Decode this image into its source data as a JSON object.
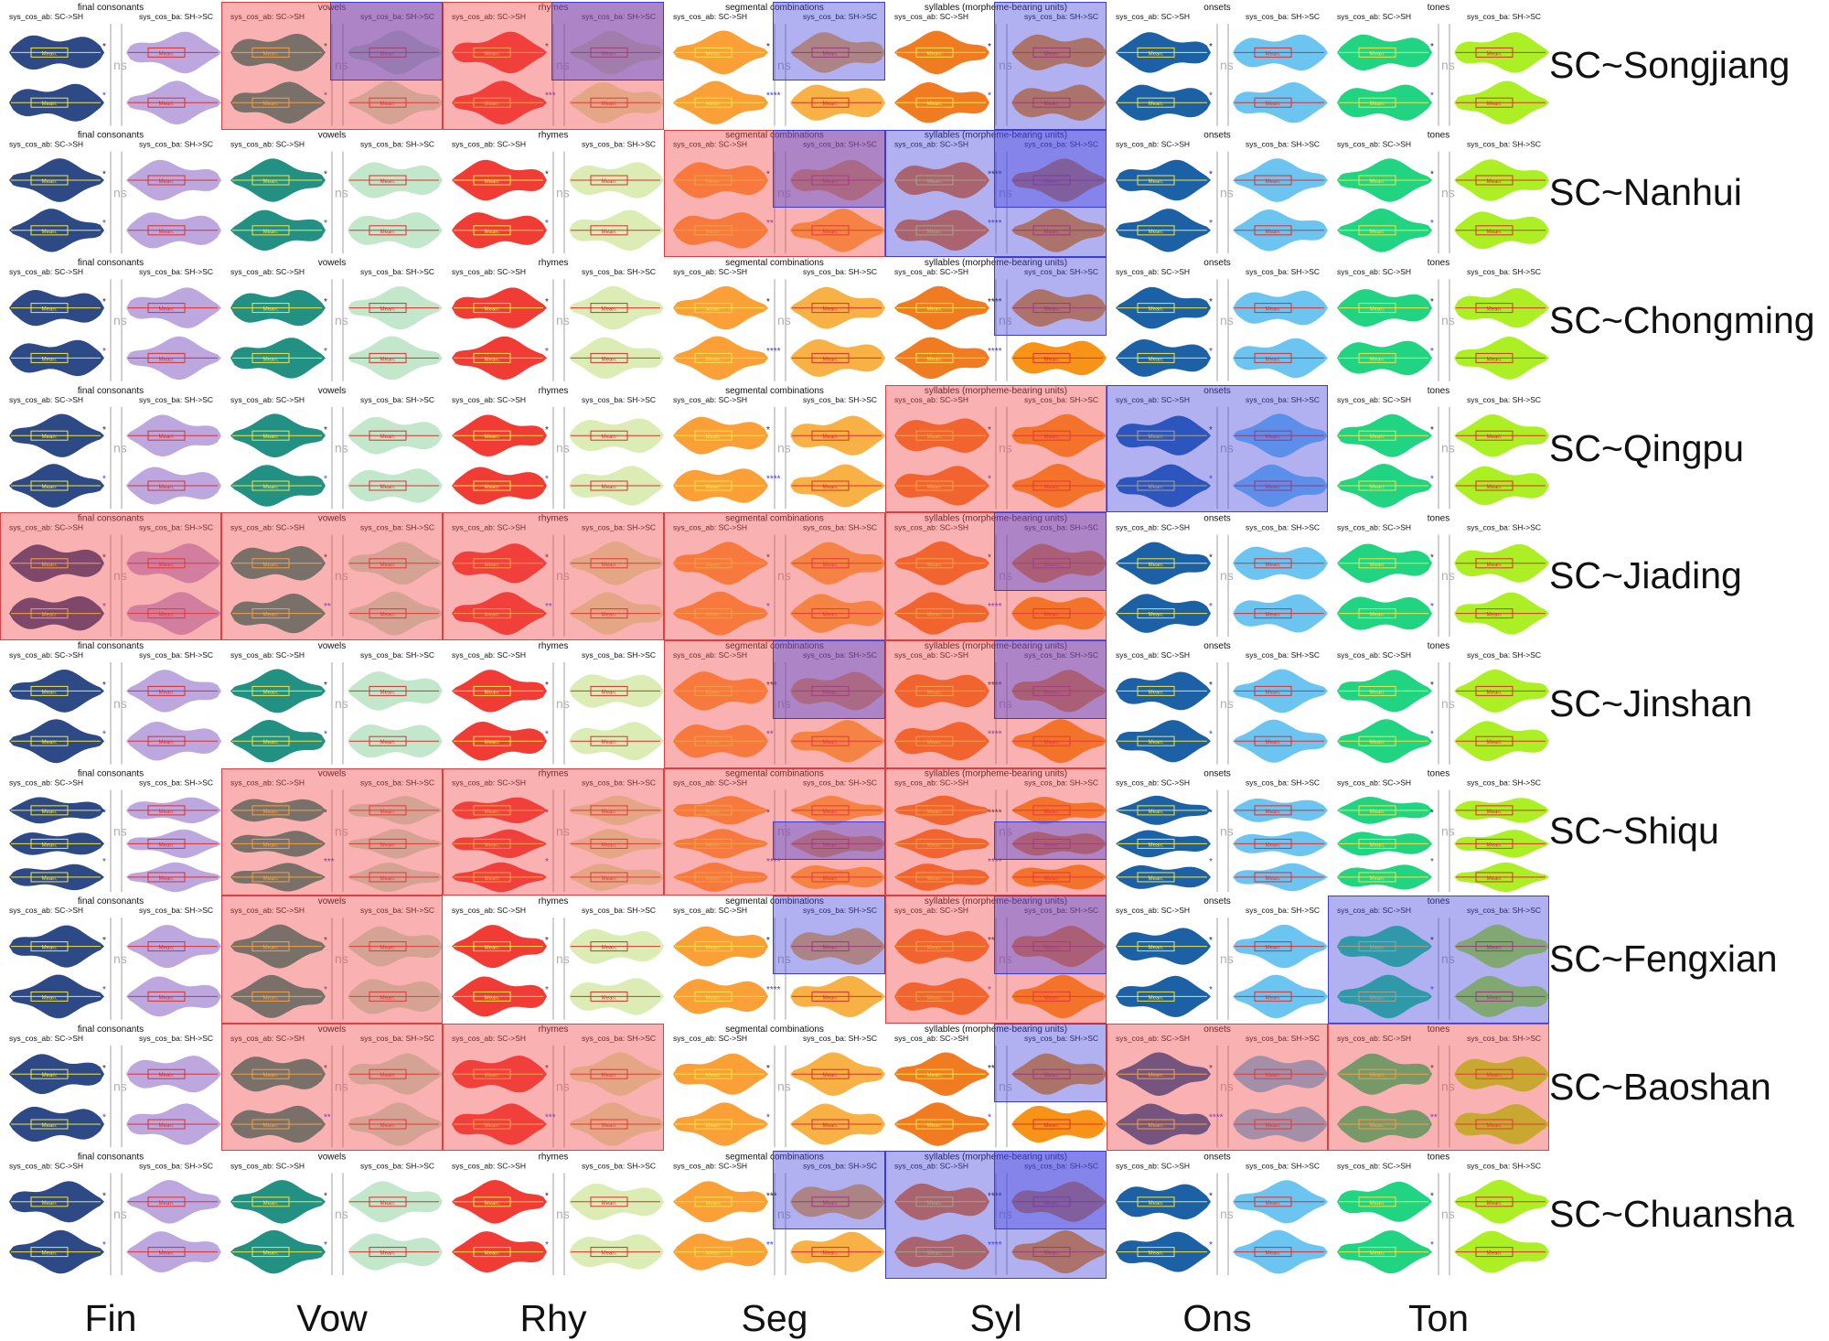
{
  "columns": [
    {
      "code": "Fin",
      "title": "final consonants",
      "left_color": "#23407f",
      "right_color": "#b8a2dd"
    },
    {
      "code": "Vow",
      "title": "vowels",
      "left_color": "#168a7c",
      "right_color": "#bfe6c8"
    },
    {
      "code": "Rhy",
      "title": "rhymes",
      "left_color": "#f0302a",
      "right_color": "#d9ecb0"
    },
    {
      "code": "Seg",
      "title": "segmental combinations",
      "left_color": "#fb9a2c",
      "right_color": "#f8ad3a"
    },
    {
      "code": "Syl",
      "title": "syllables (morpheme-bearing units)",
      "left_color": "#f07414",
      "right_color": "#f78e0c"
    },
    {
      "code": "Ons",
      "title": "onsets",
      "left_color": "#1059a0",
      "right_color": "#64c2ef"
    },
    {
      "code": "Ton",
      "title": "tones",
      "left_color": "#14d27a",
      "right_color": "#a8ee18"
    }
  ],
  "panel_labels": {
    "left": "sys_cos_ab: SC->SH",
    "right": "sys_cos_ba: SH->SC"
  },
  "rows": [
    {
      "label": "SC~Songjiang",
      "violins": 2
    },
    {
      "label": "SC~Nanhui",
      "violins": 2
    },
    {
      "label": "SC~Chongming",
      "violins": 2
    },
    {
      "label": "SC~Qingpu",
      "violins": 2
    },
    {
      "label": "SC~Jiading",
      "violins": 2
    },
    {
      "label": "SC~Jinshan",
      "violins": 2
    },
    {
      "label": "SC~Shiqu",
      "violins": 3
    },
    {
      "label": "SC~Fengxian",
      "violins": 2
    },
    {
      "label": "SC~Baoshan",
      "violins": 2
    },
    {
      "label": "SC~Chuansha",
      "violins": 2
    }
  ],
  "highlights": [
    {
      "row": 0,
      "col": 1,
      "color": "red"
    },
    {
      "row": 0,
      "col": 1,
      "color": "blue",
      "part": "upper-right"
    },
    {
      "row": 0,
      "col": 2,
      "color": "red"
    },
    {
      "row": 0,
      "col": 2,
      "color": "blue",
      "part": "upper-right"
    },
    {
      "row": 0,
      "col": 3,
      "color": "blue",
      "part": "upper-right"
    },
    {
      "row": 0,
      "col": 4,
      "color": "blue",
      "part": "right"
    },
    {
      "row": 1,
      "col": 3,
      "color": "red"
    },
    {
      "row": 1,
      "col": 3,
      "color": "blue",
      "part": "upper-right"
    },
    {
      "row": 1,
      "col": 4,
      "color": "blue"
    },
    {
      "row": 1,
      "col": 4,
      "color": "blue",
      "part": "upper-right"
    },
    {
      "row": 2,
      "col": 4,
      "color": "blue",
      "part": "upper-right"
    },
    {
      "row": 3,
      "col": 4,
      "color": "red"
    },
    {
      "row": 3,
      "col": 5,
      "color": "blue"
    },
    {
      "row": 4,
      "col": 0,
      "color": "red"
    },
    {
      "row": 4,
      "col": 1,
      "color": "red"
    },
    {
      "row": 4,
      "col": 2,
      "color": "red"
    },
    {
      "row": 4,
      "col": 3,
      "color": "red"
    },
    {
      "row": 4,
      "col": 4,
      "color": "red"
    },
    {
      "row": 4,
      "col": 4,
      "color": "blue",
      "part": "upper-right"
    },
    {
      "row": 5,
      "col": 3,
      "color": "red"
    },
    {
      "row": 5,
      "col": 3,
      "color": "blue",
      "part": "upper-right"
    },
    {
      "row": 5,
      "col": 4,
      "color": "red"
    },
    {
      "row": 5,
      "col": 4,
      "color": "blue",
      "part": "upper-right"
    },
    {
      "row": 6,
      "col": 1,
      "color": "red"
    },
    {
      "row": 6,
      "col": 2,
      "color": "red"
    },
    {
      "row": 6,
      "col": 3,
      "color": "red"
    },
    {
      "row": 6,
      "col": 3,
      "color": "blue",
      "part": "middle-right"
    },
    {
      "row": 6,
      "col": 4,
      "color": "red"
    },
    {
      "row": 6,
      "col": 4,
      "color": "blue",
      "part": "middle-right"
    },
    {
      "row": 7,
      "col": 1,
      "color": "red"
    },
    {
      "row": 7,
      "col": 3,
      "color": "blue",
      "part": "upper-right"
    },
    {
      "row": 7,
      "col": 4,
      "color": "red"
    },
    {
      "row": 7,
      "col": 4,
      "color": "blue",
      "part": "upper-right"
    },
    {
      "row": 7,
      "col": 6,
      "color": "blue"
    },
    {
      "row": 8,
      "col": 1,
      "color": "red"
    },
    {
      "row": 8,
      "col": 2,
      "color": "red"
    },
    {
      "row": 8,
      "col": 4,
      "color": "blue",
      "part": "upper-right"
    },
    {
      "row": 8,
      "col": 5,
      "color": "red"
    },
    {
      "row": 8,
      "col": 6,
      "color": "red"
    },
    {
      "row": 9,
      "col": 3,
      "color": "blue",
      "part": "upper-right"
    },
    {
      "row": 9,
      "col": 4,
      "color": "blue"
    },
    {
      "row": 9,
      "col": 4,
      "color": "blue",
      "part": "upper-right"
    }
  ],
  "significance": {
    "symbols": [
      "*",
      "**",
      "***",
      "****",
      "ns"
    ],
    "left_marks": [
      [
        "*",
        "*",
        "*",
        "*",
        "*",
        "*",
        "*"
      ],
      [
        "*",
        "*",
        "*",
        "*",
        "****",
        "*",
        "*"
      ],
      [
        "*",
        "*",
        "*",
        "*",
        "****",
        "*",
        "*"
      ],
      [
        "*",
        "*",
        "*",
        "*",
        "*",
        "*",
        "*"
      ],
      [
        "*",
        "*",
        "*",
        "*",
        "*",
        "*",
        "*"
      ],
      [
        "*",
        "*",
        "*",
        "***",
        "****",
        "*",
        "*"
      ],
      [
        "*",
        "*",
        "*",
        "*",
        "****",
        "*",
        "*"
      ],
      [
        "*",
        "*",
        "*",
        "*",
        "**",
        "*",
        "*"
      ],
      [
        "*",
        "*",
        "*",
        "*",
        "**",
        "*",
        "*"
      ],
      [
        "*",
        "*",
        "*",
        "***",
        "****",
        "*",
        "*"
      ]
    ],
    "right_marks": [
      [
        "*",
        "*",
        "***",
        "****",
        "*",
        "*",
        "*"
      ],
      [
        "*",
        "*",
        "*",
        "**",
        "****",
        "*",
        "*"
      ],
      [
        "*",
        "*",
        "*",
        "****",
        "****",
        "*",
        "*"
      ],
      [
        "*",
        "*",
        "*",
        "****",
        "*",
        "*",
        "*"
      ],
      [
        "*",
        "**",
        "**",
        "*",
        "****",
        "*",
        "*"
      ],
      [
        "*",
        "*",
        "*",
        "**",
        "****",
        "*",
        "*"
      ],
      [
        "*",
        "***",
        "*",
        "****",
        "****",
        "*",
        "*"
      ],
      [
        "*",
        "*",
        "*",
        "****",
        "*",
        "*",
        "*"
      ],
      [
        "*",
        "**",
        "***",
        "*",
        "*",
        "****",
        "**"
      ],
      [
        "*",
        "*",
        "*",
        "**",
        "****",
        "*",
        "*"
      ]
    ]
  },
  "mean_label_prefix": "Mean: "
}
